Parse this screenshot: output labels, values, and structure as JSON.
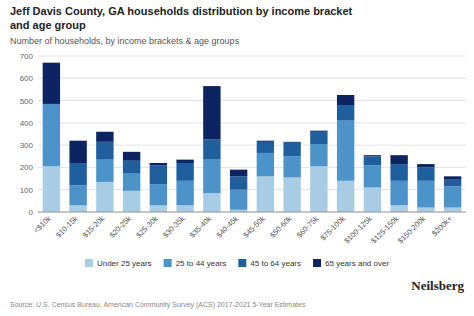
{
  "chart_data": {
    "type": "bar",
    "stacked": true,
    "title": "Jeff Davis County, GA households distribution by income bracket\nand age group",
    "subtitle": "Number of households, by income brackets & age groups",
    "annotations": [
      "Source: U.S. Census Bureau, American Community Survey (ACS) 2017-2021 5-Year Estimates",
      "Neilsberg"
    ],
    "categories": [
      "<$10k",
      "$10-15k",
      "$15-20k",
      "$20-25k",
      "$25-30k",
      "$30-35k",
      "$35-40k",
      "$40-45k",
      "$45-50k",
      "$50-60k",
      "$60-75k",
      "$75-100k",
      "$100-125k",
      "$125-150k",
      "$150-200k",
      "$200k+"
    ],
    "series": [
      {
        "name": "Under 25 years",
        "color": "#a8cce4",
        "values": [
          205,
          30,
          135,
          95,
          30,
          30,
          85,
          10,
          160,
          155,
          205,
          140,
          110,
          30,
          20,
          20
        ]
      },
      {
        "name": "25 to 44 years",
        "color": "#4b93c8",
        "values": [
          280,
          90,
          100,
          80,
          95,
          110,
          150,
          90,
          105,
          95,
          100,
          270,
          100,
          110,
          120,
          95
        ]
      },
      {
        "name": "45 to 64 years",
        "color": "#1f5f9e",
        "values": [
          0,
          100,
          80,
          55,
          85,
          80,
          90,
          60,
          50,
          65,
          55,
          70,
          40,
          75,
          60,
          30
        ]
      },
      {
        "name": "65 years and over",
        "color": "#0c2461",
        "values": [
          185,
          100,
          45,
          40,
          10,
          15,
          240,
          30,
          5,
          0,
          5,
          45,
          5,
          40,
          15,
          15
        ]
      }
    ],
    "ylim": [
      0,
      700
    ],
    "yticks": [
      0,
      100,
      200,
      300,
      400,
      500,
      600,
      700
    ],
    "grid": true,
    "legend": "bottom"
  }
}
